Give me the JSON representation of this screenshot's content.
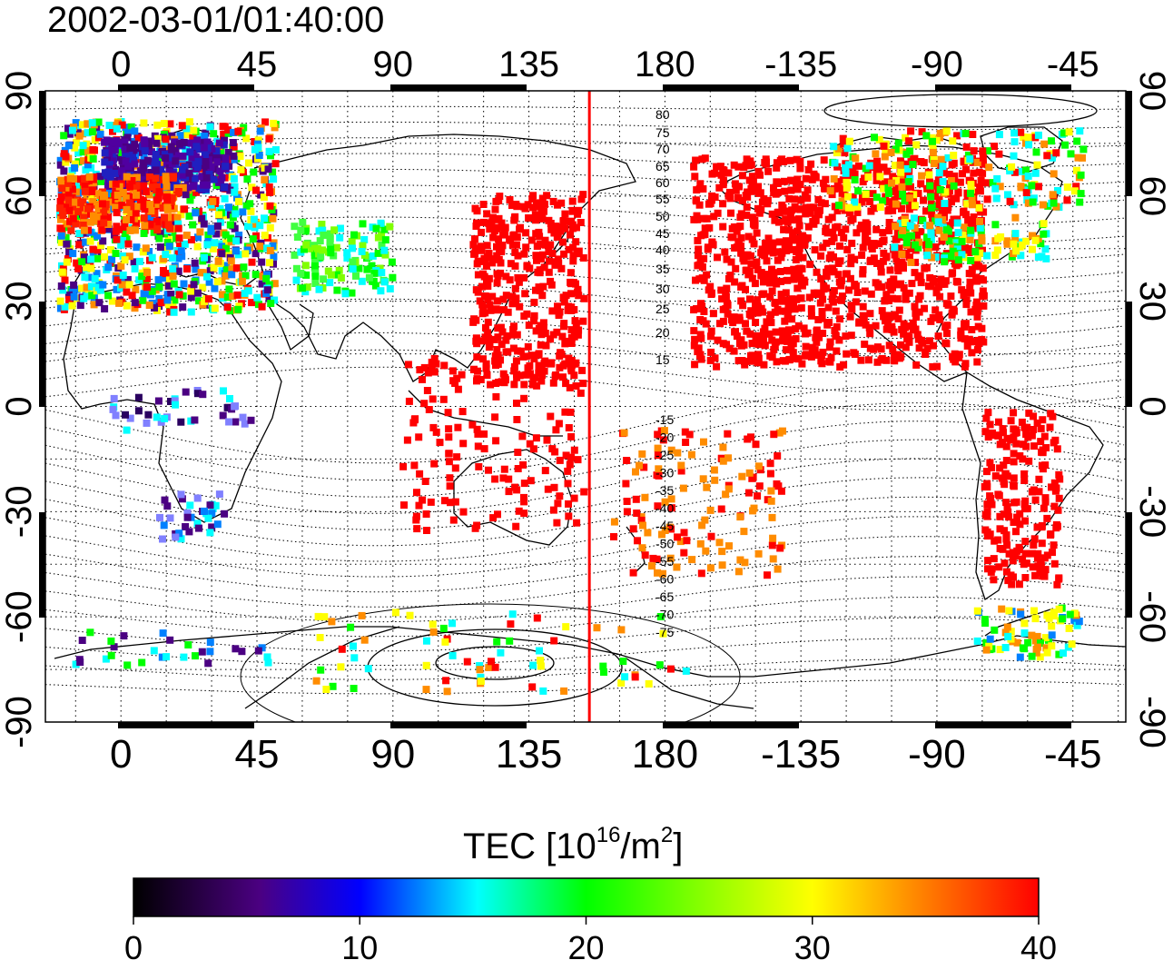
{
  "title": "2002-03-01/01:40:00",
  "map": {
    "lon_ticks_top": [
      "0",
      "45",
      "90",
      "135",
      "180",
      "-135",
      "-90",
      "-45"
    ],
    "lon_ticks_bottom": [
      "0",
      "45",
      "90",
      "135",
      "180",
      "-135",
      "-90",
      "-45"
    ],
    "lat_ticks_left": [
      "90",
      "60",
      "30",
      "0",
      "-30",
      "-60",
      "-90"
    ],
    "lat_ticks_right": [
      "90",
      "60",
      "30",
      "0",
      "-30",
      "-60",
      "-90"
    ],
    "terminator_longitude": 155,
    "terminator_color": "#ff0000",
    "contour_labels_north": [
      "80",
      "75",
      "70",
      "65",
      "60",
      "55",
      "50",
      "45",
      "40",
      "35",
      "30",
      "25",
      "20",
      "15"
    ],
    "contour_labels_south": [
      "-15",
      "-20",
      "-25",
      "-30",
      "-35",
      "-40",
      "-45",
      "-50",
      "-55",
      "-60",
      "-65",
      "-70",
      "-75"
    ]
  },
  "colorbar": {
    "label_main": "TEC  [10",
    "label_exp1": "16",
    "label_mid": "/m",
    "label_exp2": "2",
    "label_end": "]",
    "ticks": [
      "0",
      "10",
      "20",
      "30",
      "40"
    ],
    "colors": [
      "#000000",
      "#4b0082",
      "#0000ff",
      "#00ffff",
      "#00ff00",
      "#ffff00",
      "#ff8c00",
      "#ff0000"
    ]
  }
}
